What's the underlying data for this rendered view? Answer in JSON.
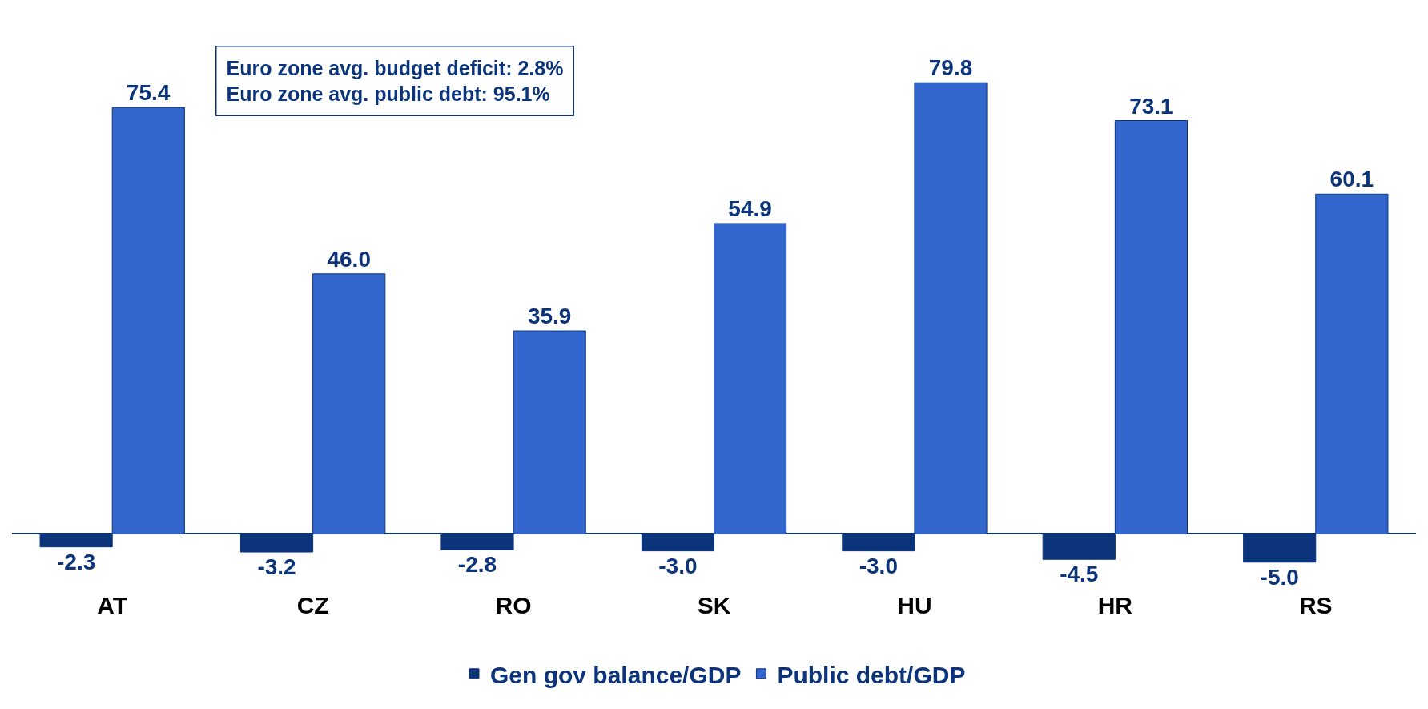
{
  "chart_data": {
    "type": "bar",
    "categories": [
      "AT",
      "CZ",
      "RO",
      "SK",
      "HU",
      "HR",
      "RS"
    ],
    "series": [
      {
        "name": "Gen gov balance/GDP",
        "color": "#0b347a",
        "values": [
          -2.3,
          -3.2,
          -2.8,
          -3,
          -3,
          -4.5,
          -5
        ],
        "value_labels": [
          "-2.3",
          "-3.2",
          "-2.8",
          "-3.0",
          "-3.0",
          "-4.5",
          "-5.0"
        ]
      },
      {
        "name": "Public debt/GDP",
        "color": "#3366cc",
        "values": [
          75.4,
          46,
          35.9,
          54.9,
          79.8,
          73.1,
          60.1
        ],
        "value_labels": [
          "75.4",
          "46.0",
          "35.9",
          "54.9",
          "79.8",
          "73.1",
          "60.1"
        ]
      }
    ],
    "legend": "bottom",
    "grid": false,
    "annotations": [
      "Euro zone avg. budget deficit: 2.8%",
      "Euro zone avg. public debt: 95.1%"
    ]
  }
}
